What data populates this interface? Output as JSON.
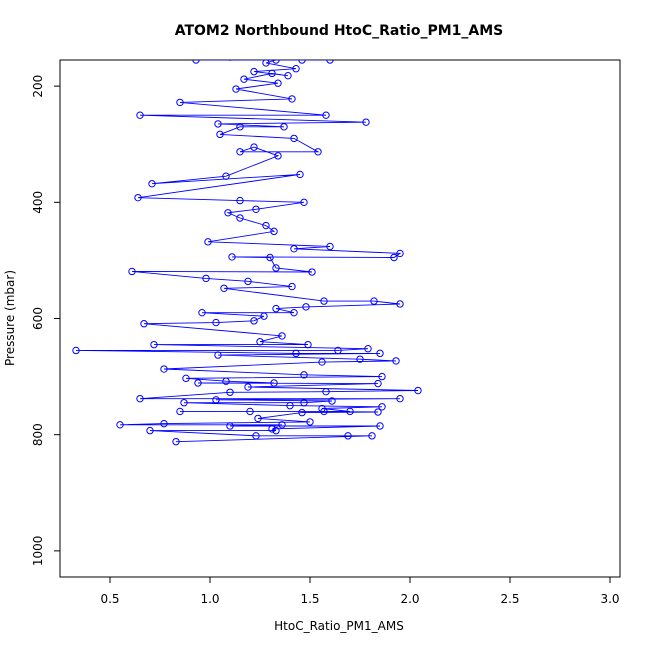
{
  "chart_data": {
    "type": "scatter",
    "title": "ATOM2 Northbound HtoC_Ratio_PM1_AMS",
    "xlabel": "HtoC_Ratio_PM1_AMS",
    "ylabel": "Pressure (mbar)",
    "xlim": [
      0.25,
      3.05
    ],
    "ylim": [
      1045,
      155
    ],
    "y_reversed": true,
    "x_ticks": [
      0.5,
      1.0,
      1.5,
      2.0,
      2.5,
      3.0
    ],
    "x_tick_labels": [
      "0.5",
      "1.0",
      "1.5",
      "2.0",
      "2.5",
      "3.0"
    ],
    "y_ticks": [
      200,
      400,
      600,
      800,
      1000
    ],
    "y_tick_labels": [
      "200",
      "400",
      "600",
      "800",
      "1000"
    ],
    "grid": false,
    "legend": "none",
    "series": [
      {
        "color": "#0000ff",
        "marker": "open-circle",
        "line": true,
        "points": [
          [
            1.1,
            150
          ],
          [
            0.93,
            155
          ],
          [
            1.46,
            155
          ],
          [
            1.6,
            155
          ],
          [
            1.33,
            155
          ],
          [
            1.28,
            160
          ],
          [
            1.43,
            170
          ],
          [
            1.22,
            175
          ],
          [
            1.39,
            182
          ],
          [
            1.31,
            178
          ],
          [
            1.17,
            188
          ],
          [
            1.34,
            195
          ],
          [
            1.13,
            205
          ],
          [
            1.41,
            222
          ],
          [
            0.85,
            228
          ],
          [
            1.58,
            250
          ],
          [
            0.65,
            250
          ],
          [
            1.78,
            262
          ],
          [
            1.04,
            265
          ],
          [
            1.37,
            270
          ],
          [
            1.15,
            270
          ],
          [
            1.05,
            283
          ],
          [
            1.42,
            290
          ],
          [
            1.54,
            313
          ],
          [
            1.15,
            313
          ],
          [
            1.22,
            305
          ],
          [
            1.34,
            320
          ],
          [
            1.08,
            355
          ],
          [
            0.71,
            368
          ],
          [
            1.45,
            352
          ],
          [
            0.64,
            392
          ],
          [
            1.15,
            397
          ],
          [
            1.47,
            400
          ],
          [
            1.23,
            412
          ],
          [
            1.09,
            418
          ],
          [
            1.15,
            427
          ],
          [
            1.28,
            440
          ],
          [
            1.32,
            450
          ],
          [
            0.99,
            468
          ],
          [
            1.6,
            476
          ],
          [
            1.42,
            480
          ],
          [
            1.95,
            488
          ],
          [
            1.92,
            495
          ],
          [
            1.11,
            494
          ],
          [
            1.3,
            495
          ],
          [
            1.33,
            513
          ],
          [
            1.51,
            520
          ],
          [
            0.61,
            519
          ],
          [
            0.98,
            531
          ],
          [
            1.19,
            536
          ],
          [
            1.41,
            545
          ],
          [
            1.07,
            548
          ],
          [
            1.57,
            570
          ],
          [
            1.82,
            570
          ],
          [
            1.95,
            575
          ],
          [
            1.48,
            580
          ],
          [
            1.33,
            583
          ],
          [
            1.42,
            590
          ],
          [
            0.96,
            590
          ],
          [
            1.27,
            596
          ],
          [
            1.22,
            604
          ],
          [
            1.03,
            607
          ],
          [
            0.67,
            609
          ],
          [
            1.36,
            630
          ],
          [
            1.25,
            640
          ],
          [
            1.49,
            645
          ],
          [
            0.72,
            645
          ],
          [
            1.79,
            652
          ],
          [
            1.64,
            655
          ],
          [
            0.33,
            655
          ],
          [
            1.43,
            660
          ],
          [
            1.85,
            660
          ],
          [
            1.04,
            663
          ],
          [
            1.75,
            670
          ],
          [
            1.93,
            673
          ],
          [
            1.56,
            675
          ],
          [
            0.77,
            687
          ],
          [
            1.47,
            697
          ],
          [
            1.86,
            700
          ],
          [
            0.88,
            703
          ],
          [
            1.08,
            708
          ],
          [
            1.32,
            711
          ],
          [
            0.94,
            711
          ],
          [
            1.84,
            712
          ],
          [
            1.19,
            718
          ],
          [
            2.04,
            724
          ],
          [
            1.58,
            726
          ],
          [
            1.1,
            727
          ],
          [
            0.65,
            738
          ],
          [
            1.95,
            738
          ],
          [
            1.03,
            740
          ],
          [
            1.61,
            742
          ],
          [
            1.47,
            745
          ],
          [
            0.87,
            745
          ],
          [
            1.4,
            750
          ],
          [
            1.86,
            752
          ],
          [
            1.56,
            755
          ],
          [
            1.7,
            760
          ],
          [
            0.85,
            760
          ],
          [
            1.2,
            760
          ],
          [
            1.57,
            760
          ],
          [
            1.84,
            761
          ],
          [
            1.46,
            762
          ],
          [
            1.24,
            772
          ],
          [
            1.5,
            778
          ],
          [
            0.77,
            781
          ],
          [
            0.55,
            783
          ],
          [
            1.36,
            783
          ],
          [
            1.1,
            785
          ],
          [
            1.85,
            785
          ],
          [
            1.31,
            790
          ],
          [
            1.33,
            793
          ],
          [
            0.7,
            793
          ],
          [
            1.23,
            802
          ],
          [
            1.69,
            802
          ],
          [
            1.81,
            802
          ],
          [
            0.83,
            812
          ]
        ]
      }
    ]
  }
}
